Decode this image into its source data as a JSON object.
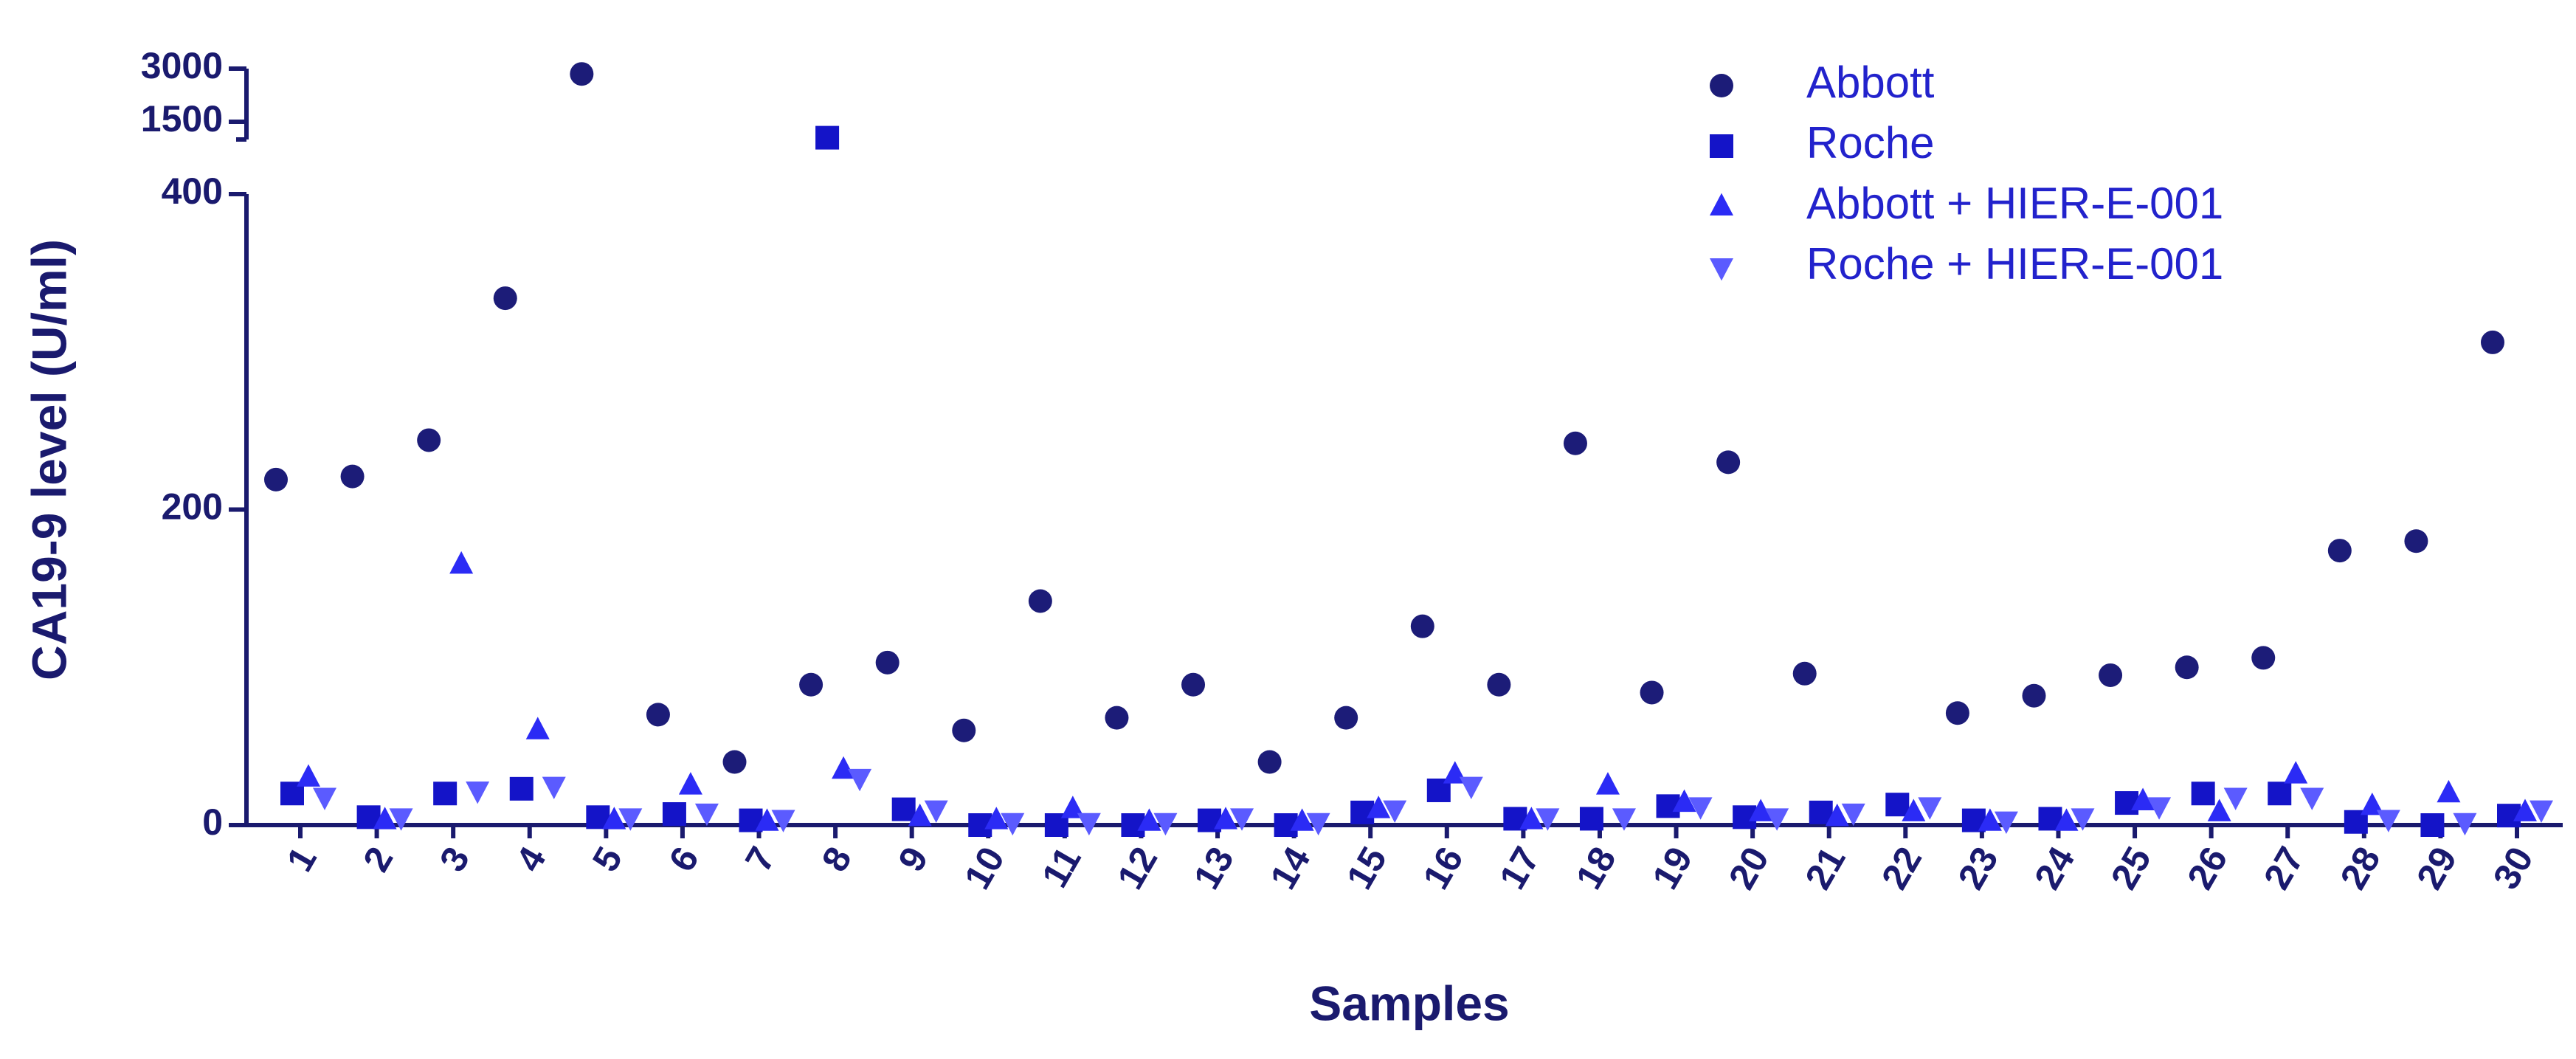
{
  "chart_data": {
    "type": "scatter",
    "y_label": "CA19-9 level  (U/ml)",
    "x_label": "Samples",
    "categories": [
      "1",
      "2",
      "3",
      "4",
      "5",
      "6",
      "7",
      "8",
      "9",
      "10",
      "11",
      "12",
      "13",
      "14",
      "15",
      "16",
      "17",
      "18",
      "19",
      "20",
      "21",
      "22",
      "23",
      "24",
      "25",
      "26",
      "27",
      "28",
      "29",
      "30"
    ],
    "ylim": [
      0,
      3000
    ],
    "y_break": [
      400,
      1000
    ],
    "yticks": [
      0,
      200,
      400,
      1500,
      3000
    ],
    "legend": "top-right",
    "series": [
      {
        "name": "Abbott",
        "color": "#1c1c78",
        "marker": "circle",
        "values": [
          219,
          221,
          244,
          334,
          2850,
          70,
          40,
          89,
          103,
          60,
          142,
          68,
          89,
          40,
          68,
          126,
          89,
          242,
          84,
          230,
          96,
          null,
          71,
          82,
          95,
          100,
          106,
          174,
          180,
          306
        ]
      },
      {
        "name": "Roche",
        "color": "#1414c8",
        "marker": "square",
        "values": [
          20,
          5,
          20,
          23,
          5,
          7,
          3,
          1050,
          10,
          0,
          0,
          0,
          3,
          0,
          8,
          22,
          4,
          4,
          12,
          5,
          8,
          13,
          3,
          4,
          14,
          20,
          20,
          2,
          0,
          6
        ]
      },
      {
        "name": "Abbott + HIER-E-001",
        "color": "#2b2bf5",
        "marker": "triangle-up",
        "values": [
          30,
          3,
          165,
          60,
          3,
          25,
          2,
          35,
          5,
          3,
          10,
          2,
          3,
          2,
          10,
          32,
          3,
          25,
          14,
          8,
          5,
          8,
          2,
          2,
          15,
          8,
          32,
          12,
          20,
          8
        ]
      },
      {
        "name": "Roche + HIER-E-001",
        "color": "#5b5bff",
        "marker": "triangle-down",
        "values": [
          18,
          5,
          22,
          25,
          5,
          8,
          4,
          30,
          10,
          2,
          2,
          2,
          5,
          2,
          10,
          25,
          5,
          5,
          12,
          5,
          8,
          12,
          3,
          5,
          12,
          18,
          18,
          4,
          2,
          10
        ]
      }
    ]
  }
}
